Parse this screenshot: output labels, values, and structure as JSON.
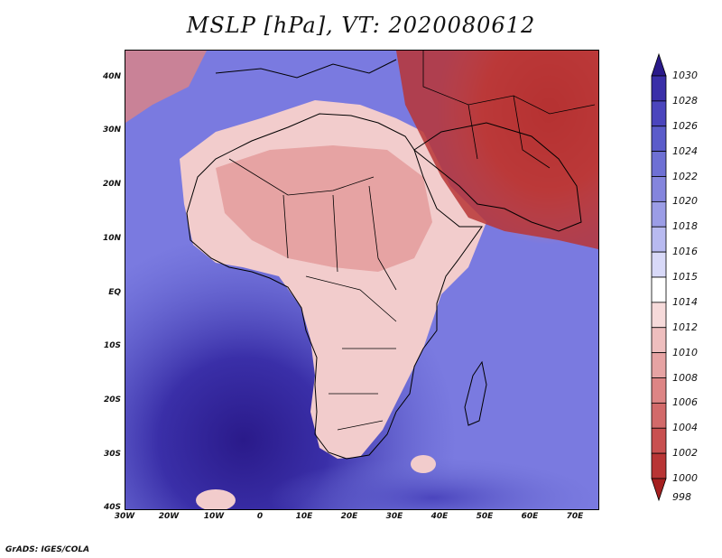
{
  "title": "MSLP [hPa], VT: 2020080612",
  "credit": "GrADS: IGES/COLA",
  "y_ticks": [
    "40N",
    "30N",
    "20N",
    "10N",
    "EQ",
    "10S",
    "20S",
    "30S",
    "40S"
  ],
  "x_ticks": [
    "30W",
    "20W",
    "10W",
    "0",
    "10E",
    "20E",
    "30E",
    "40E",
    "50E",
    "60E",
    "70E"
  ],
  "colorbar": {
    "levels": [
      "1030",
      "1028",
      "1026",
      "1024",
      "1022",
      "1020",
      "1018",
      "1016",
      "1015",
      "1014",
      "1012",
      "1010",
      "1008",
      "1006",
      "1004",
      "1002",
      "1000",
      "998"
    ],
    "colors": [
      "#2a1a8a",
      "#3a2fa8",
      "#4b45bd",
      "#5b5cca",
      "#6e70d4",
      "#8485dd",
      "#9b9de6",
      "#b8baf0",
      "#d8d9f8",
      "#ffffff",
      "#f6dada",
      "#eebebe",
      "#e6a3a3",
      "#dd8585",
      "#d26a6a",
      "#c85050",
      "#b83535",
      "#a52020"
    ]
  }
}
